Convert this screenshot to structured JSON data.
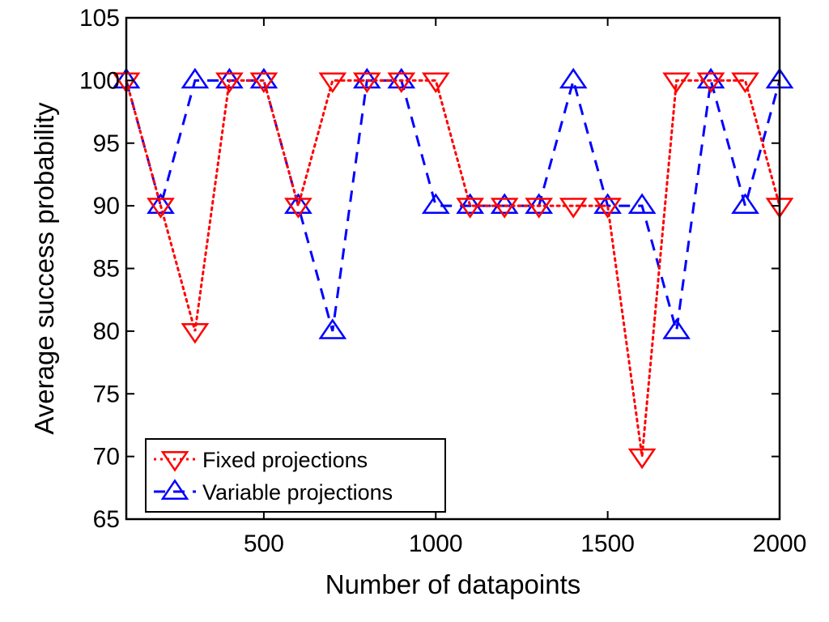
{
  "chart_data": {
    "type": "line",
    "title": "",
    "xlabel": "Number of datapoints",
    "ylabel": "Average success probability",
    "xlim": [
      100,
      2000
    ],
    "ylim": [
      65,
      105
    ],
    "xticks": [
      500,
      1000,
      1500,
      2000
    ],
    "yticks": [
      65,
      70,
      75,
      80,
      85,
      90,
      95,
      100,
      105
    ],
    "grid": false,
    "legend_position": "bottom-left",
    "x": [
      100,
      200,
      300,
      400,
      500,
      600,
      700,
      800,
      900,
      1000,
      1100,
      1200,
      1300,
      1400,
      1500,
      1600,
      1700,
      1800,
      1900,
      2000
    ],
    "series": [
      {
        "name": "Fixed projections",
        "color": "#ff0000",
        "line_style": "dotted",
        "marker": "triangle-down",
        "values": [
          100,
          90,
          80,
          100,
          100,
          90,
          100,
          100,
          100,
          100,
          90,
          90,
          90,
          90,
          90,
          70,
          100,
          100,
          100,
          90
        ]
      },
      {
        "name": "Variable projections",
        "color": "#0000ff",
        "line_style": "dashed",
        "marker": "triangle-up",
        "values": [
          100,
          90,
          100,
          100,
          100,
          90,
          80,
          100,
          100,
          90,
          90,
          90,
          90,
          100,
          90,
          90,
          80,
          100,
          90,
          100
        ]
      }
    ]
  }
}
